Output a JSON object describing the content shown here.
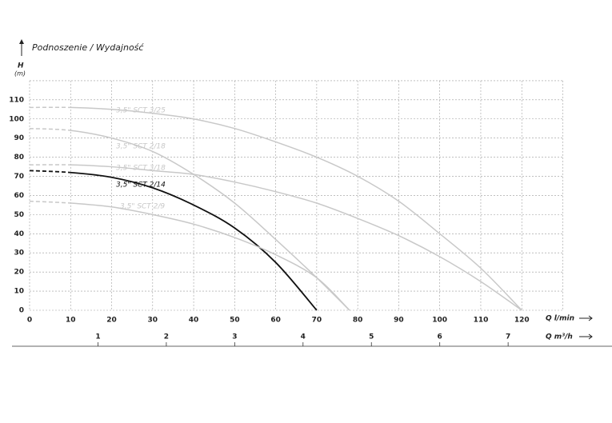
{
  "chart_data": {
    "type": "line",
    "title": "Podnoszenie / Wydajność",
    "y_label": "H",
    "y_unit": "(m)",
    "x_label": "Q l/min",
    "x2_label": "Q m³/h",
    "xlim": [
      0,
      130
    ],
    "ylim": [
      0,
      120
    ],
    "xticks": [
      0,
      10,
      20,
      30,
      40,
      50,
      60,
      70,
      80,
      90,
      100,
      110,
      120
    ],
    "yticks": [
      0,
      10,
      20,
      30,
      40,
      50,
      60,
      70,
      80,
      90,
      100,
      110
    ],
    "x2lim": [
      0,
      7.8
    ],
    "x2ticks": [
      1,
      2,
      3,
      4,
      5,
      6,
      7
    ],
    "grid": true,
    "series": [
      {
        "name": "3,5\" SCT 3/25",
        "color": "#c8c8c8",
        "x": [
          0,
          10,
          20,
          30,
          40,
          50,
          60,
          70,
          80,
          90,
          100,
          110,
          120
        ],
        "values": [
          106,
          106,
          105,
          103,
          100,
          95,
          88,
          80,
          70,
          57,
          40,
          22,
          0
        ]
      },
      {
        "name": "3,5\" SCT 2/18",
        "color": "#c8c8c8",
        "x": [
          0,
          10,
          20,
          30,
          40,
          50,
          60,
          70,
          78
        ],
        "values": [
          95,
          94,
          90,
          83,
          71,
          56,
          37,
          17,
          0
        ]
      },
      {
        "name": "3,5\" SCT 3/18",
        "color": "#c8c8c8",
        "x": [
          0,
          10,
          20,
          30,
          40,
          50,
          60,
          70,
          80,
          90,
          100,
          110,
          120
        ],
        "values": [
          76,
          76,
          75,
          73,
          71,
          67,
          62,
          56,
          48,
          39,
          28,
          15,
          0
        ]
      },
      {
        "name": "3,5\" SCT 2/14",
        "color": "#111111",
        "x": [
          0,
          10,
          20,
          30,
          40,
          50,
          60,
          70
        ],
        "values": [
          73,
          72,
          69.5,
          64,
          55,
          43,
          25,
          0
        ]
      },
      {
        "name": "3,5\" SCT 2/9",
        "color": "#c8c8c8",
        "x": [
          0,
          10,
          20,
          30,
          40,
          50,
          60,
          70,
          78
        ],
        "values": [
          57,
          56,
          54,
          50,
          45,
          38,
          29,
          17,
          0
        ]
      }
    ]
  }
}
